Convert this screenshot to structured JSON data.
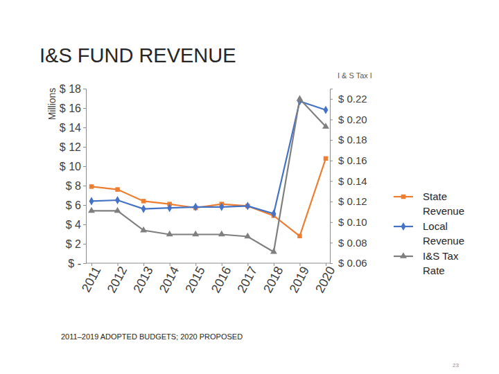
{
  "chart_data": {
    "type": "line",
    "title": "I&S FUND REVENUE",
    "y_label": "Millions",
    "y2_label": "I & S Tax I",
    "footnote": "2011–2019 ADOPTED BUDGETS; 2020 PROPOSED",
    "page_number": "23",
    "categories": [
      "2011",
      "2012",
      "2013",
      "2014",
      "2015",
      "2016",
      "2017",
      "2018",
      "2019",
      "2020"
    ],
    "series": [
      {
        "name": "State Revenue",
        "color": "#ed7d31",
        "marker": "square",
        "values": [
          7.9,
          7.6,
          6.4,
          6.1,
          5.7,
          6.1,
          5.9,
          4.9,
          2.8,
          10.8
        ]
      },
      {
        "name": "Local Revenue",
        "color": "#4472c4",
        "marker": "diamond",
        "values": [
          6.4,
          6.5,
          5.6,
          5.7,
          5.8,
          5.8,
          5.9,
          5.1,
          16.7,
          15.8
        ]
      },
      {
        "name": "I&S Tax Rate",
        "color": "#7f7f7f",
        "marker": "triangle",
        "axis": "y2",
        "values": [
          0.111,
          0.111,
          0.092,
          0.088,
          0.088,
          0.088,
          0.086,
          0.071,
          0.22,
          0.193
        ]
      }
    ],
    "ylim": [
      0,
      18
    ],
    "yticks": [
      {
        "value": 0,
        "label": "$ -"
      },
      {
        "value": 2,
        "label": "$ 2"
      },
      {
        "value": 4,
        "label": "$ 4"
      },
      {
        "value": 6,
        "label": "$ 6"
      },
      {
        "value": 8,
        "label": "$ 8"
      },
      {
        "value": 10,
        "label": "$ 10"
      },
      {
        "value": 12,
        "label": "$ 12"
      },
      {
        "value": 14,
        "label": "$ 14"
      },
      {
        "value": 16,
        "label": "$ 16"
      },
      {
        "value": 18,
        "label": "$ 18"
      }
    ],
    "y2lim": [
      0.06,
      0.23
    ],
    "y2ticks": [
      {
        "value": 0.06,
        "label": "$ 0.06"
      },
      {
        "value": 0.08,
        "label": "$ 0.08"
      },
      {
        "value": 0.1,
        "label": "$ 0.10"
      },
      {
        "value": 0.12,
        "label": "$ 0.12"
      },
      {
        "value": 0.14,
        "label": "$ 0.14"
      },
      {
        "value": 0.16,
        "label": "$ 0.16"
      },
      {
        "value": 0.18,
        "label": "$ 0.18"
      },
      {
        "value": 0.2,
        "label": "$ 0.20"
      },
      {
        "value": 0.22,
        "label": "$ 0.22"
      }
    ],
    "grid": false,
    "legend": "right"
  }
}
